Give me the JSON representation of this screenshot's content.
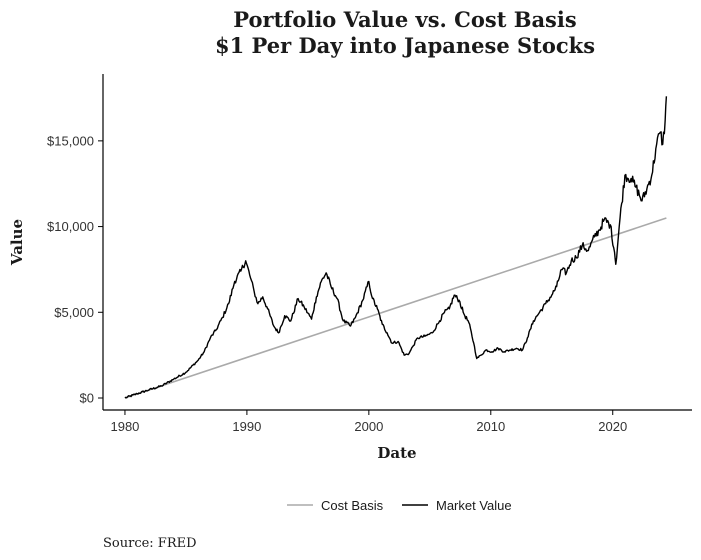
{
  "chart_data": {
    "type": "line",
    "title_line1": "Portfolio Value vs. Cost Basis",
    "title_line2": "$1 Per Day into Japanese Stocks",
    "xlabel": "Date",
    "ylabel": "Value",
    "xlim": [
      1978.2,
      2026.5
    ],
    "ylim": [
      -700,
      18900
    ],
    "x_ticks": [
      1980,
      1990,
      2000,
      2010,
      2020
    ],
    "x_tick_labels": [
      "1980",
      "1990",
      "2000",
      "2010",
      "2020"
    ],
    "y_ticks": [
      0,
      5000,
      10000,
      15000
    ],
    "y_tick_labels": [
      "$0",
      "$5,000",
      "$10,000",
      "$15,000"
    ],
    "grid": false,
    "legend_placement": "bottom",
    "source": "Source: FRED",
    "series": [
      {
        "name": "Cost Basis",
        "color": "#aaaaaa",
        "x": [
          1980,
          2024.4
        ],
        "y": [
          0,
          10500
        ]
      },
      {
        "name": "Market Value",
        "color": "#000000",
        "x": [
          1980,
          1981,
          1982,
          1983,
          1984,
          1985,
          1986,
          1986.5,
          1987,
          1987.5,
          1988,
          1988.5,
          1989,
          1989.5,
          1989.9,
          1990.3,
          1990.6,
          1990.9,
          1991.3,
          1991.7,
          1992.2,
          1992.6,
          1993.1,
          1993.6,
          1994.2,
          1994.7,
          1995.3,
          1995.7,
          1996.1,
          1996.5,
          1996.9,
          1997.4,
          1997.9,
          1998.5,
          1998.9,
          1999.5,
          2000.0,
          2000.3,
          2000.7,
          2001.1,
          2001.5,
          2001.9,
          2002.4,
          2002.9,
          2003.3,
          2003.6,
          2004.0,
          2004.6,
          2005.2,
          2005.8,
          2006.2,
          2006.6,
          2007.0,
          2007.4,
          2007.8,
          2008.2,
          2008.6,
          2008.85,
          2009.2,
          2009.6,
          2010.1,
          2010.6,
          2011.1,
          2011.6,
          2012.1,
          2012.6,
          2013.0,
          2013.5,
          2014.0,
          2014.5,
          2015.0,
          2015.4,
          2015.8,
          2016.2,
          2016.6,
          2017.0,
          2017.5,
          2018.0,
          2018.5,
          2018.9,
          2019.3,
          2019.8,
          2020.15,
          2020.25,
          2020.6,
          2021.0,
          2021.5,
          2021.9,
          2022.4,
          2022.8,
          2023.2,
          2023.6,
          2023.9,
          2024.1,
          2024.3,
          2024.4
        ],
        "y": [
          0,
          250,
          480,
          700,
          1100,
          1500,
          2200,
          2700,
          3500,
          4000,
          4700,
          5500,
          6800,
          7400,
          8000,
          7000,
          6200,
          5500,
          5900,
          5200,
          4200,
          3800,
          4800,
          4500,
          5800,
          5300,
          4600,
          5900,
          6800,
          7300,
          6500,
          5800,
          4500,
          4200,
          4700,
          5700,
          6800,
          5800,
          5200,
          4300,
          3800,
          3200,
          3300,
          2500,
          2600,
          3000,
          3500,
          3600,
          3800,
          4500,
          5000,
          5200,
          6000,
          5700,
          4900,
          4400,
          3200,
          2300,
          2500,
          2800,
          2700,
          2900,
          2700,
          2800,
          2900,
          2800,
          3500,
          4500,
          5000,
          5500,
          6000,
          6500,
          7500,
          7300,
          8000,
          8200,
          8900,
          8600,
          9400,
          9800,
          10400,
          10100,
          8500,
          7800,
          10500,
          13000,
          12800,
          12300,
          11500,
          12200,
          13000,
          14800,
          15500,
          14800,
          16200,
          17600
        ]
      }
    ]
  }
}
